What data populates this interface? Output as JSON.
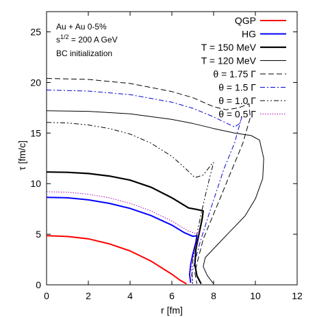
{
  "chart_data": {
    "type": "line",
    "title": "",
    "xlabel": "r [fm]",
    "ylabel": "τ [fm/c]",
    "xlim": [
      0,
      12
    ],
    "ylim": [
      0,
      27
    ],
    "xticks": [
      "0",
      "2",
      "4",
      "6",
      "8",
      "10",
      "12"
    ],
    "yticks": [
      "0",
      "5",
      "10",
      "15",
      "20",
      "25"
    ],
    "grid": false,
    "legend_position": "top-right",
    "annotations": {
      "line1": "Au + Au  0-5%",
      "line2_base": "s",
      "line2_sup": "1/2",
      "line2_rest": " = 200 A GeV",
      "line3": "BC initialization"
    },
    "series": [
      {
        "name": "QGP",
        "color": "#ff0000",
        "style": "solid",
        "width": 2,
        "points": [
          [
            0,
            4.85
          ],
          [
            1,
            4.78
          ],
          [
            2,
            4.55
          ],
          [
            3,
            4.05
          ],
          [
            4,
            3.35
          ],
          [
            5,
            2.35
          ],
          [
            6,
            1.05
          ],
          [
            6.4,
            0.45
          ],
          [
            6.7,
            0.1
          ]
        ]
      },
      {
        "name": "HG",
        "color": "#0000ff",
        "style": "solid",
        "width": 2,
        "points": [
          [
            0,
            8.65
          ],
          [
            1,
            8.6
          ],
          [
            2,
            8.4
          ],
          [
            3,
            8.05
          ],
          [
            4,
            7.55
          ],
          [
            5,
            6.85
          ],
          [
            6,
            5.9
          ],
          [
            6.6,
            5.15
          ],
          [
            7,
            4.8
          ],
          [
            7.2,
            4.85
          ],
          [
            7.15,
            4.2
          ],
          [
            7,
            3.0
          ],
          [
            6.9,
            2.0
          ],
          [
            6.85,
            1.0
          ],
          [
            6.9,
            0.2
          ]
        ]
      },
      {
        "name": "T = 150 MeV",
        "color": "#000000",
        "style": "solid",
        "width": 2.2,
        "points": [
          [
            0,
            11.15
          ],
          [
            1,
            11.12
          ],
          [
            2,
            11.0
          ],
          [
            3,
            10.75
          ],
          [
            4,
            10.35
          ],
          [
            5,
            9.65
          ],
          [
            6,
            8.6
          ],
          [
            6.8,
            7.6
          ],
          [
            7.2,
            7.45
          ],
          [
            7.5,
            7.3
          ],
          [
            7.45,
            6.5
          ],
          [
            7.3,
            5.0
          ],
          [
            7.15,
            3.5
          ],
          [
            7.1,
            2.0
          ],
          [
            7.2,
            0.9
          ],
          [
            7.4,
            0.1
          ]
        ]
      },
      {
        "name": "T = 120 MeV",
        "color": "#000000",
        "style": "solid",
        "width": 1,
        "points": [
          [
            0,
            17.2
          ],
          [
            2,
            17.15
          ],
          [
            4,
            16.9
          ],
          [
            6,
            16.35
          ],
          [
            7,
            15.95
          ],
          [
            8,
            15.45
          ],
          [
            9,
            15.0
          ],
          [
            9.8,
            14.75
          ],
          [
            10.2,
            14.3
          ],
          [
            10.4,
            12.5
          ],
          [
            10.35,
            10.5
          ],
          [
            10.0,
            8.5
          ],
          [
            9.5,
            6.8
          ],
          [
            8.8,
            5.3
          ],
          [
            8.2,
            4.0
          ],
          [
            7.6,
            2.7
          ],
          [
            7.5,
            1.8
          ],
          [
            7.7,
            0.9
          ],
          [
            8.0,
            0.1
          ]
        ]
      },
      {
        "name": "θ = 1.75 Γ",
        "color": "#000000",
        "style": "longdash",
        "width": 1,
        "points": [
          [
            0,
            20.4
          ],
          [
            2,
            20.3
          ],
          [
            4,
            19.9
          ],
          [
            6,
            19.1
          ],
          [
            7,
            18.5
          ],
          [
            8,
            17.6
          ],
          [
            8.6,
            17.3
          ],
          [
            9.2,
            17.5
          ],
          [
            9.7,
            17.9
          ],
          [
            9.75,
            16.5
          ],
          [
            9.4,
            14.0
          ],
          [
            9.0,
            12.0
          ],
          [
            8.7,
            10.5
          ],
          [
            8.3,
            8.5
          ],
          [
            7.9,
            6.5
          ],
          [
            7.5,
            4.5
          ],
          [
            7.25,
            2.5
          ],
          [
            7.1,
            1.2
          ],
          [
            7.2,
            0.1
          ]
        ]
      },
      {
        "name": "θ = 1.5 Γ",
        "color": "#0000cc",
        "style": "dashdot",
        "width": 1,
        "points": [
          [
            0,
            19.25
          ],
          [
            2,
            19.15
          ],
          [
            4,
            18.8
          ],
          [
            6,
            18.05
          ],
          [
            7,
            17.45
          ],
          [
            8,
            16.6
          ],
          [
            8.6,
            16.0
          ],
          [
            9.0,
            15.6
          ],
          [
            9.25,
            15.95
          ],
          [
            9.35,
            16.6
          ],
          [
            9.0,
            14.0
          ],
          [
            8.5,
            11.5
          ],
          [
            8.1,
            9.0
          ],
          [
            7.7,
            6.5
          ],
          [
            7.35,
            4.2
          ],
          [
            7.1,
            2.3
          ],
          [
            6.95,
            1.0
          ],
          [
            7.0,
            0.1
          ]
        ]
      },
      {
        "name": "θ = 1.0 Γ",
        "color": "#000000",
        "style": "dashdotdot",
        "width": 1,
        "points": [
          [
            0,
            16.05
          ],
          [
            1,
            16.0
          ],
          [
            2,
            15.8
          ],
          [
            3,
            15.45
          ],
          [
            4,
            14.9
          ],
          [
            5,
            14.0
          ],
          [
            6,
            12.7
          ],
          [
            6.7,
            11.4
          ],
          [
            7.1,
            10.6
          ],
          [
            7.5,
            10.85
          ],
          [
            7.9,
            11.9
          ],
          [
            8.0,
            12.1
          ],
          [
            7.8,
            10.5
          ],
          [
            7.6,
            8.8
          ],
          [
            7.4,
            7.0
          ],
          [
            7.2,
            5.0
          ],
          [
            7.05,
            3.0
          ],
          [
            6.95,
            1.5
          ],
          [
            7.0,
            0.1
          ]
        ]
      },
      {
        "name": "θ = 0.5 Γ",
        "color": "#aa00aa",
        "style": "dotted",
        "width": 1,
        "points": [
          [
            0,
            9.2
          ],
          [
            1,
            9.15
          ],
          [
            2,
            8.95
          ],
          [
            3,
            8.6
          ],
          [
            4,
            8.05
          ],
          [
            5,
            7.3
          ],
          [
            6,
            6.3
          ],
          [
            6.8,
            5.3
          ],
          [
            7.2,
            5.05
          ],
          [
            7.35,
            5.4
          ],
          [
            7.25,
            4.3
          ],
          [
            7.05,
            3.0
          ],
          [
            6.9,
            2.0
          ],
          [
            6.85,
            1.0
          ],
          [
            6.9,
            0.1
          ]
        ]
      }
    ]
  }
}
